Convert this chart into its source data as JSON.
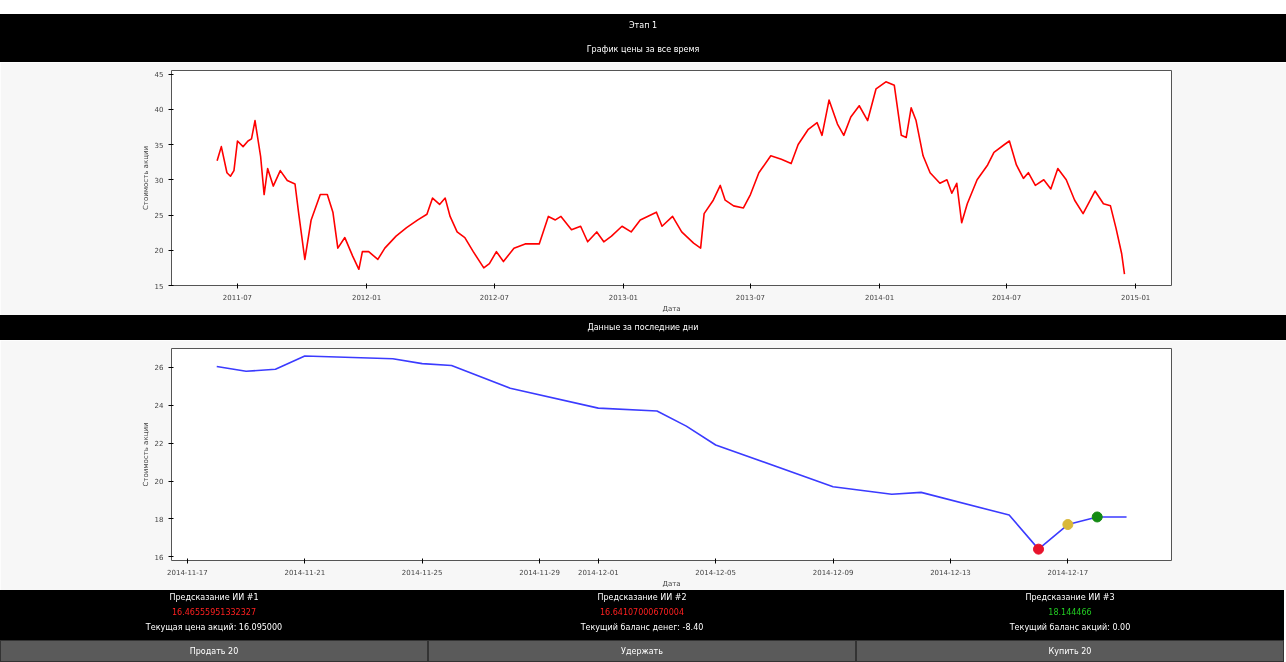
{
  "chart_data": [
    {
      "type": "line",
      "title": "Этап 1",
      "subtitle": "График цены за все время",
      "xlabel": "Дата",
      "ylabel": "Стоимость акции",
      "xlim": [
        "2011-03-29",
        "2015-02-21"
      ],
      "ylim": [
        15,
        45.5
      ],
      "xticks": [
        "2011-07",
        "2012-01",
        "2012-07",
        "2013-01",
        "2013-07",
        "2014-01",
        "2014-07",
        "2015-01"
      ],
      "yticks": [
        15,
        20,
        25,
        30,
        35,
        40,
        45
      ],
      "marker": "none",
      "grid": false,
      "series": [
        {
          "color": "#ff0000",
          "x": [
            "2011-06-02",
            "2011-06-08",
            "2011-06-16",
            "2011-06-21",
            "2011-06-26",
            "2011-07-01",
            "2011-07-09",
            "2011-07-16",
            "2011-07-21",
            "2011-07-26",
            "2011-08-03",
            "2011-08-08",
            "2011-08-13",
            "2011-08-21",
            "2011-08-31",
            "2011-09-10",
            "2011-09-21",
            "2011-09-26",
            "2011-10-05",
            "2011-10-14",
            "2011-10-27",
            "2011-11-06",
            "2011-11-14",
            "2011-11-21",
            "2011-12-01",
            "2011-12-12",
            "2011-12-21",
            "2011-12-26",
            "2012-01-04",
            "2012-01-17",
            "2012-01-27",
            "2012-02-12",
            "2012-02-27",
            "2012-03-14",
            "2012-03-27",
            "2012-04-04",
            "2012-04-14",
            "2012-04-22",
            "2012-04-29",
            "2012-05-09",
            "2012-05-20",
            "2012-06-01",
            "2012-06-16",
            "2012-06-24",
            "2012-07-04",
            "2012-07-14",
            "2012-07-29",
            "2012-08-14",
            "2012-09-03",
            "2012-09-16",
            "2012-09-26",
            "2012-10-04",
            "2012-10-19",
            "2012-11-01",
            "2012-11-11",
            "2012-11-24",
            "2012-12-04",
            "2012-12-15",
            "2012-12-30",
            "2013-01-12",
            "2013-01-25",
            "2013-02-17",
            "2013-02-25",
            "2013-03-12",
            "2013-03-25",
            "2013-04-11",
            "2013-04-21",
            "2013-04-26",
            "2013-05-09",
            "2013-05-19",
            "2013-05-26",
            "2013-06-07",
            "2013-06-21",
            "2013-07-01",
            "2013-07-13",
            "2013-07-30",
            "2013-08-14",
            "2013-08-28",
            "2013-09-07",
            "2013-09-21",
            "2013-10-04",
            "2013-10-11",
            "2013-10-21",
            "2013-11-02",
            "2013-11-11",
            "2013-11-21",
            "2013-12-03",
            "2013-12-15",
            "2013-12-27",
            "2014-01-10",
            "2014-01-22",
            "2014-02-01",
            "2014-02-08",
            "2014-02-15",
            "2014-02-22",
            "2014-03-04",
            "2014-03-14",
            "2014-03-28",
            "2014-04-07",
            "2014-04-14",
            "2014-04-21",
            "2014-04-28",
            "2014-05-06",
            "2014-05-20",
            "2014-06-04",
            "2014-06-13",
            "2014-06-28",
            "2014-07-05",
            "2014-07-15",
            "2014-07-25",
            "2014-08-01",
            "2014-08-11",
            "2014-08-23",
            "2014-09-02",
            "2014-09-12",
            "2014-09-24",
            "2014-10-06",
            "2014-10-18",
            "2014-11-04",
            "2014-11-16",
            "2014-11-26",
            "2014-12-04",
            "2014-12-12",
            "2014-12-16"
          ],
          "values": [
            32.7,
            34.7,
            31.0,
            30.5,
            31.3,
            35.5,
            34.7,
            35.5,
            35.8,
            38.4,
            33.3,
            27.9,
            31.6,
            29.1,
            31.3,
            29.9,
            29.4,
            25.4,
            18.7,
            24.3,
            27.9,
            27.9,
            25.4,
            20.3,
            21.8,
            19.2,
            17.3,
            19.8,
            19.8,
            18.7,
            20.3,
            22.0,
            23.2,
            24.3,
            25.1,
            27.4,
            26.5,
            27.4,
            24.8,
            22.6,
            21.8,
            19.8,
            17.5,
            18.1,
            19.8,
            18.4,
            20.3,
            20.9,
            20.9,
            24.8,
            24.3,
            24.8,
            22.9,
            23.4,
            21.2,
            22.6,
            21.2,
            22.0,
            23.4,
            22.6,
            24.3,
            25.4,
            23.4,
            24.8,
            22.6,
            21.0,
            20.3,
            25.2,
            27.1,
            29.2,
            27.1,
            26.3,
            26.0,
            27.9,
            31.0,
            33.4,
            32.9,
            32.3,
            35.0,
            37.1,
            38.1,
            36.3,
            41.3,
            37.9,
            36.3,
            38.9,
            40.5,
            38.4,
            42.9,
            43.9,
            43.4,
            36.3,
            36.0,
            40.2,
            38.4,
            33.4,
            31.0,
            29.5,
            30.0,
            28.1,
            29.5,
            23.9,
            26.6,
            30.0,
            32.1,
            33.9,
            35.0,
            35.5,
            32.1,
            30.2,
            31.0,
            29.2,
            30.0,
            28.7,
            31.6,
            30.0,
            27.1,
            25.2,
            28.4,
            26.6,
            26.3,
            23.1,
            19.5,
            16.6
          ]
        }
      ]
    },
    {
      "type": "line",
      "title": "Данные за последние дни",
      "xlabel": "Дата",
      "ylabel": "Стоимость акции",
      "xlim": [
        "2014-11-16T11:00",
        "2014-12-20T12:45"
      ],
      "ylim": [
        15.8,
        27.0
      ],
      "xticks": [
        "2014-11-17",
        "2014-11-21",
        "2014-11-25",
        "2014-11-29",
        "2014-12-01",
        "2014-12-05",
        "2014-12-09",
        "2014-12-13",
        "2014-12-17"
      ],
      "yticks": [
        16,
        18,
        20,
        22,
        24,
        26
      ],
      "marker": "none",
      "grid": false,
      "series": [
        {
          "color": "#3b3bff",
          "x": [
            "2014-11-18",
            "2014-11-19",
            "2014-11-20",
            "2014-11-21",
            "2014-11-24",
            "2014-11-25",
            "2014-11-26",
            "2014-11-28",
            "2014-12-01",
            "2014-12-03",
            "2014-12-04",
            "2014-12-05",
            "2014-12-09",
            "2014-12-11",
            "2014-12-12",
            "2014-12-15",
            "2014-12-16",
            "2014-12-17",
            "2014-12-18",
            "2014-12-19"
          ],
          "values": [
            26.05,
            25.8,
            25.9,
            26.6,
            26.46,
            26.2,
            26.1,
            24.9,
            23.85,
            23.7,
            22.9,
            21.9,
            19.7,
            19.3,
            19.4,
            18.2,
            16.4,
            17.7,
            18.1,
            18.1
          ]
        },
        {
          "type": "scatter",
          "marker": "circle",
          "color": "#e8132c",
          "x": [
            "2014-12-16"
          ],
          "values": [
            16.4
          ]
        },
        {
          "type": "scatter",
          "marker": "circle",
          "color": "#d9b83a",
          "x": [
            "2014-12-17"
          ],
          "values": [
            17.7
          ]
        },
        {
          "type": "scatter",
          "marker": "circle",
          "color": "#138a13",
          "x": [
            "2014-12-18"
          ],
          "values": [
            18.1
          ]
        }
      ],
      "annotations": [
        "Предсказание ИИ #1",
        "16.46555951332327",
        "Текущая цена акций: 16.095000",
        "Предсказание ИИ #2",
        "16.64107000670004",
        "Текущий баланс денег: -8.40",
        "Предсказание ИИ #3",
        "18.144466",
        "Текущий баланс акций: 0.00",
        "Продать 20",
        "Удержать",
        "Купить 20"
      ]
    }
  ]
}
